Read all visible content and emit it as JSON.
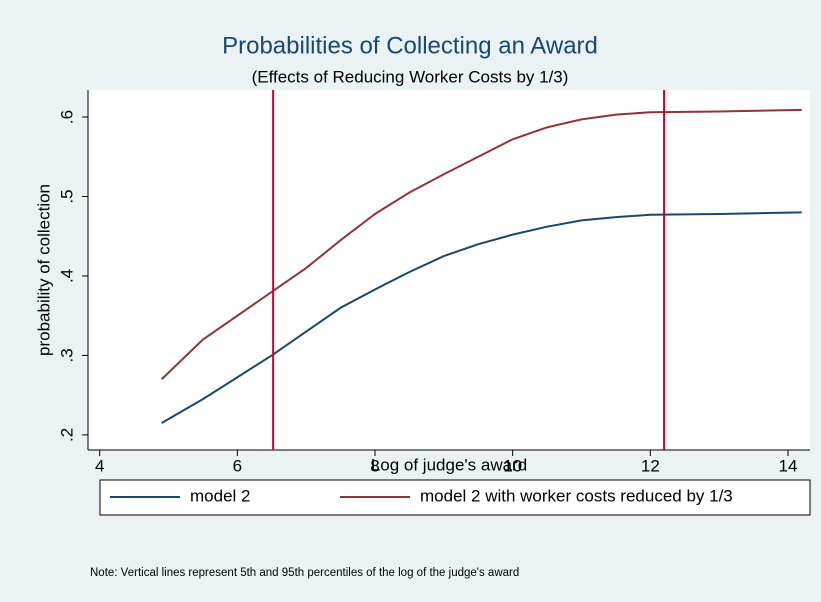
{
  "chart_data": {
    "type": "line",
    "title": "Probabilities of Collecting an Award",
    "subtitle": "(Effects of Reducing Worker Costs by 1/3)",
    "x_label": "Log of judge's award",
    "y_label": "probability of collection",
    "x": [
      4.9,
      5.5,
      6.5,
      7,
      7.5,
      8,
      8.5,
      9,
      9.5,
      10,
      10.5,
      11,
      11.5,
      12,
      13,
      14.2
    ],
    "series": [
      {
        "name": "model 2",
        "color": "#1a476f",
        "values": [
          0.215,
          0.245,
          0.3,
          0.33,
          0.36,
          0.383,
          0.405,
          0.425,
          0.44,
          0.452,
          0.462,
          0.47,
          0.474,
          0.477,
          0.478,
          0.48
        ]
      },
      {
        "name": "model 2 with worker costs reduced by 1/3",
        "color": "#90353b",
        "values": [
          0.27,
          0.32,
          0.38,
          0.41,
          0.445,
          0.478,
          0.505,
          0.528,
          0.55,
          0.572,
          0.587,
          0.597,
          0.603,
          0.606,
          0.607,
          0.609
        ]
      }
    ],
    "vlines": [
      6.52,
      12.2
    ],
    "vline_color": "#c10534",
    "xlim": [
      3.83,
      14.32
    ],
    "ylim": [
      0.181,
      0.634
    ],
    "xticks": [
      4,
      6,
      8,
      10,
      12,
      14
    ],
    "yticks": [
      {
        "value": 0.2,
        "label": ".2"
      },
      {
        "value": 0.3,
        "label": ".3"
      },
      {
        "value": 0.4,
        "label": ".4"
      },
      {
        "value": 0.5,
        "label": ".5"
      },
      {
        "value": 0.6,
        "label": ".6"
      }
    ],
    "grid": false,
    "legend": "bottom",
    "note": "Note: Vertical lines represent 5th and 95th percentiles of the log of the judge's award"
  }
}
